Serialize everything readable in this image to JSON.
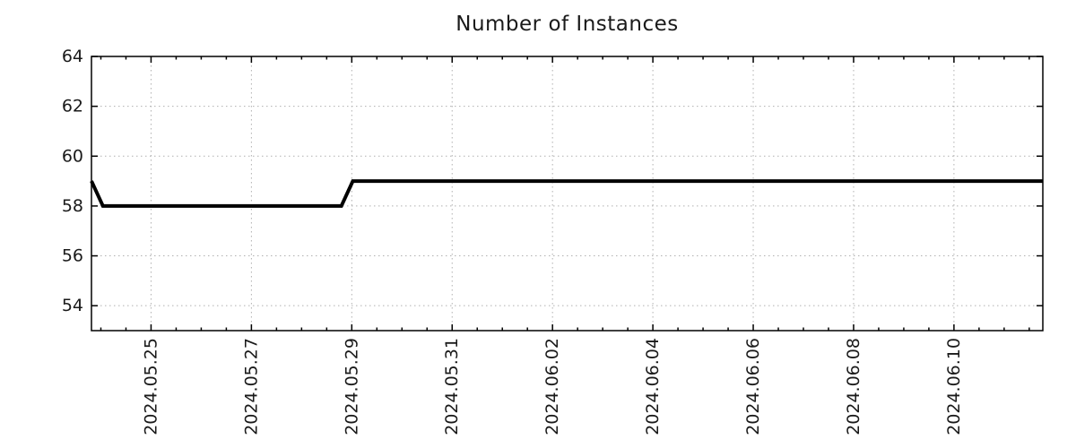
{
  "chart_data": {
    "type": "line",
    "title": "Number of Instances",
    "xlabel": "",
    "ylabel": "",
    "legend": "none",
    "grid": "dotted major gridlines, both axes",
    "line_color": "#000000",
    "line_width": 4,
    "grid_color": "#b0b0b0",
    "axis_color": "#000000",
    "x_axis": {
      "start": "2024-05-23T19:30:00",
      "end": "2024-06-11T18:30:00",
      "major_tick_interval_days": 2,
      "minor_tick_interval_hours": 12,
      "major_ticks": [
        {
          "t": "2024-05-25T00:00:00",
          "label": "2024.05.25"
        },
        {
          "t": "2024-05-27T00:00:00",
          "label": "2024.05.27"
        },
        {
          "t": "2024-05-29T00:00:00",
          "label": "2024.05.29"
        },
        {
          "t": "2024-05-31T00:00:00",
          "label": "2024.05.31"
        },
        {
          "t": "2024-06-02T00:00:00",
          "label": "2024.06.02"
        },
        {
          "t": "2024-06-04T00:00:00",
          "label": "2024.06.04"
        },
        {
          "t": "2024-06-06T00:00:00",
          "label": "2024.06.06"
        },
        {
          "t": "2024-06-08T00:00:00",
          "label": "2024.06.08"
        },
        {
          "t": "2024-06-10T00:00:00",
          "label": "2024.06.10"
        }
      ]
    },
    "y_axis": {
      "min": 53,
      "max": 64,
      "major_ticks": [
        54,
        56,
        58,
        60,
        62,
        64
      ]
    },
    "series": [
      {
        "name": "instances",
        "points": [
          {
            "t": "2024-05-23T19:30:00",
            "v": 59
          },
          {
            "t": "2024-05-24T01:00:00",
            "v": 58
          },
          {
            "t": "2024-05-28T19:00:00",
            "v": 58
          },
          {
            "t": "2024-05-29T00:30:00",
            "v": 59
          },
          {
            "t": "2024-06-11T18:30:00",
            "v": 59
          }
        ]
      }
    ]
  }
}
